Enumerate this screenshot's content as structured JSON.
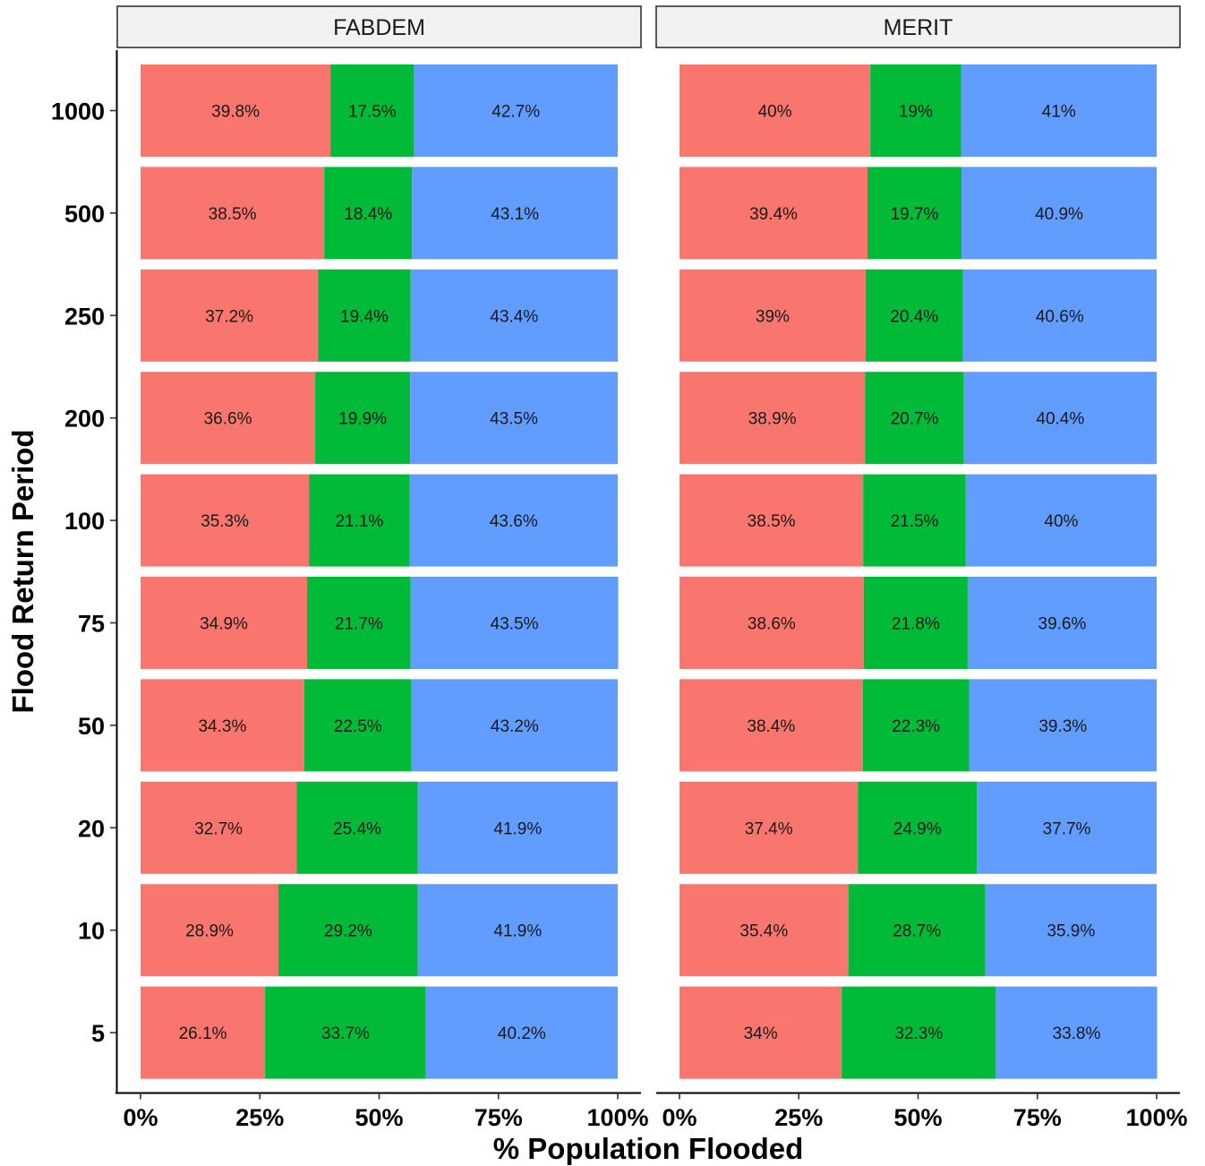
{
  "chart_data": {
    "type": "bar",
    "orientation": "horizontal",
    "stacked": true,
    "xlabel": "% Population Flooded",
    "ylabel": "Flood Return Period",
    "xlim": [
      0,
      100
    ],
    "x_ticks": [
      "0%",
      "25%",
      "50%",
      "75%",
      "100%"
    ],
    "categories": [
      "1000",
      "500",
      "250",
      "200",
      "100",
      "75",
      "50",
      "20",
      "10",
      "5"
    ],
    "series_colors": [
      "#F8766D",
      "#00BA38",
      "#619CFF"
    ],
    "legend": "none",
    "grid": false,
    "panels": [
      {
        "title": "FABDEM",
        "series": [
          {
            "values": [
              39.8,
              38.5,
              37.2,
              36.6,
              35.3,
              34.9,
              34.3,
              32.7,
              28.9,
              26.1
            ]
          },
          {
            "values": [
              17.5,
              18.4,
              19.4,
              19.9,
              21.1,
              21.7,
              22.5,
              25.4,
              29.2,
              33.7
            ]
          },
          {
            "values": [
              42.7,
              43.1,
              43.4,
              43.5,
              43.6,
              43.5,
              43.2,
              41.9,
              41.9,
              40.2
            ]
          }
        ],
        "labels": [
          [
            "39.8%",
            "38.5%",
            "37.2%",
            "36.6%",
            "35.3%",
            "34.9%",
            "34.3%",
            "32.7%",
            "28.9%",
            "26.1%"
          ],
          [
            "17.5%",
            "18.4%",
            "19.4%",
            "19.9%",
            "21.1%",
            "21.7%",
            "22.5%",
            "25.4%",
            "29.2%",
            "33.7%"
          ],
          [
            "42.7%",
            "43.1%",
            "43.4%",
            "43.5%",
            "43.6%",
            "43.5%",
            "43.2%",
            "41.9%",
            "41.9%",
            "40.2%"
          ]
        ]
      },
      {
        "title": "MERIT",
        "series": [
          {
            "values": [
              40,
              39.4,
              39,
              38.9,
              38.5,
              38.6,
              38.4,
              37.4,
              35.4,
              34
            ]
          },
          {
            "values": [
              19,
              19.7,
              20.4,
              20.7,
              21.5,
              21.8,
              22.3,
              24.9,
              28.7,
              32.3
            ]
          },
          {
            "values": [
              41,
              40.9,
              40.6,
              40.4,
              40,
              39.6,
              39.3,
              37.7,
              35.9,
              33.8
            ]
          }
        ],
        "labels": [
          [
            "40%",
            "39.4%",
            "39%",
            "38.9%",
            "38.5%",
            "38.6%",
            "38.4%",
            "37.4%",
            "35.4%",
            "34%"
          ],
          [
            "19%",
            "19.7%",
            "20.4%",
            "20.7%",
            "21.5%",
            "21.8%",
            "22.3%",
            "24.9%",
            "28.7%",
            "32.3%"
          ],
          [
            "41%",
            "40.9%",
            "40.6%",
            "40.4%",
            "40%",
            "39.6%",
            "39.3%",
            "37.7%",
            "35.9%",
            "33.8%"
          ]
        ]
      }
    ]
  }
}
